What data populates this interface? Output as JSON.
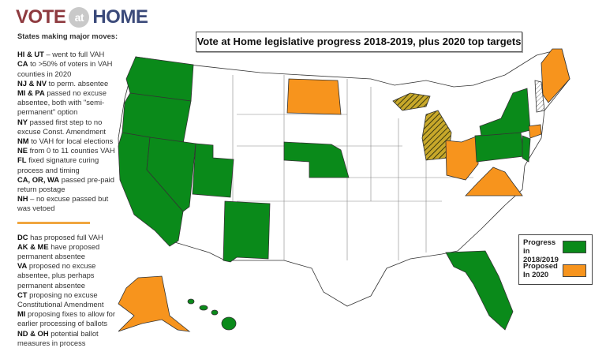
{
  "logo": {
    "left": "VOTE",
    "middle": "at",
    "right": "HOME"
  },
  "title": "Vote at Home legislative progress 2018-2019, plus 2020 top targets",
  "sidebar": {
    "heading": "States making major moves:",
    "progress_items": [
      {
        "bold": "HI & UT",
        "text": " – went to full VAH"
      },
      {
        "bold": "CA",
        "text": " to >50% of voters in VAH counties in 2020"
      },
      {
        "bold": "NJ & NV",
        "text": " to perm. absentee"
      },
      {
        "bold": "MI & PA",
        "text": " passed no excuse absentee, both with \"semi-permanent\" option"
      },
      {
        "bold": "NY",
        "text": " passed first step to no excuse Const. Amendment"
      },
      {
        "bold": "NM",
        "text": " to VAH for local elections"
      },
      {
        "bold": "NE",
        "text": " from 0 to 11 counties VAH"
      },
      {
        "bold": "FL",
        "text": " fixed signature curing process and timing"
      },
      {
        "bold": "CA, OR, WA",
        "text": " passed pre-paid return postage"
      },
      {
        "bold": "NH",
        "text": " – no excuse passed but was vetoed"
      }
    ],
    "proposed_items": [
      {
        "bold": "DC",
        "text": " has proposed full VAH"
      },
      {
        "bold": "AK & ME",
        "text": " have proposed permanent absentee"
      },
      {
        "bold": "VA",
        "text": " proposed no excuse absentee, plus perhaps permanent absentee"
      },
      {
        "bold": "CT",
        "text": " proposing no excuse Constitutional Amendment"
      },
      {
        "bold": "MI",
        "text": " proposing fixes to allow for earlier processing of ballots"
      },
      {
        "bold": "ND & OH",
        "text": " potential ballot measures in process"
      }
    ]
  },
  "legend": [
    {
      "label": "Progress in 2018/2019",
      "color": "#0a8a1a"
    },
    {
      "label": "Proposed In 2020",
      "color": "#f7941d"
    }
  ],
  "map": {
    "progress_states": [
      "WA",
      "OR",
      "CA",
      "NV",
      "UT",
      "NM",
      "NE",
      "NY",
      "PA",
      "NJ",
      "FL",
      "HI"
    ],
    "proposed_states": [
      "ND",
      "OH",
      "VA",
      "CT",
      "ME",
      "AK"
    ],
    "hatched_states": [
      "MI",
      "NH"
    ]
  }
}
